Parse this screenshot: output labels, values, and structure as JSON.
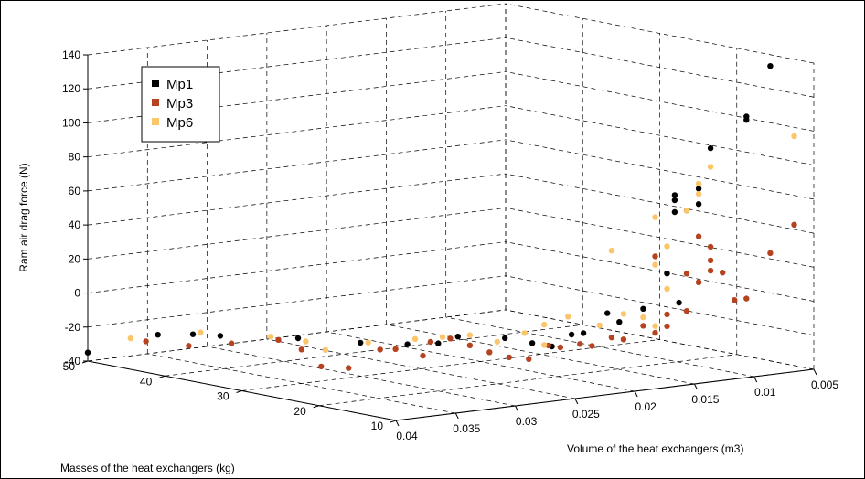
{
  "chart_data": {
    "type": "scatter",
    "projection": "3d",
    "title": "",
    "xlabel": "Volume of the heat exchangers (m3)",
    "ylabel": "Masses of the heat exchangers (kg)",
    "zlabel": "Ram air drag force (N)",
    "xlim": [
      0.005,
      0.04
    ],
    "ylim": [
      10,
      50
    ],
    "zlim": [
      -40,
      140
    ],
    "x_ticks": [
      "0.005",
      "0.01",
      "0.015",
      "0.02",
      "0.025",
      "0.03",
      "0.035",
      "0.04"
    ],
    "y_ticks": [
      "10",
      "20",
      "30",
      "40",
      "50"
    ],
    "z_ticks": [
      "-40",
      "-20",
      "0",
      "20",
      "40",
      "60",
      "80",
      "100",
      "120",
      "140"
    ],
    "grid": true,
    "legend_position": "top-left",
    "series": [
      {
        "name": "Mp1",
        "color": "#000000",
        "points": [
          {
            "x": 0.04,
            "y": 50,
            "z": -35
          },
          {
            "x": 0.038,
            "y": 44,
            "z": -21
          },
          {
            "x": 0.037,
            "y": 41,
            "z": -19
          },
          {
            "x": 0.036,
            "y": 39,
            "z": -19
          },
          {
            "x": 0.034,
            "y": 32,
            "z": -16
          },
          {
            "x": 0.032,
            "y": 27,
            "z": -16
          },
          {
            "x": 0.03,
            "y": 24,
            "z": -16
          },
          {
            "x": 0.03,
            "y": 20,
            "z": -12
          },
          {
            "x": 0.029,
            "y": 19,
            "z": -8
          },
          {
            "x": 0.027,
            "y": 16,
            "z": -8
          },
          {
            "x": 0.026,
            "y": 14,
            "z": -10
          },
          {
            "x": 0.025,
            "y": 13,
            "z": -12
          },
          {
            "x": 0.024,
            "y": 12,
            "z": -5
          },
          {
            "x": 0.023,
            "y": 12,
            "z": -5
          },
          {
            "x": 0.021,
            "y": 12,
            "z": 5
          },
          {
            "x": 0.02,
            "y": 12,
            "z": -1
          },
          {
            "x": 0.018,
            "y": 12,
            "z": 5
          },
          {
            "x": 0.016,
            "y": 12,
            "z": 24
          },
          {
            "x": 0.015,
            "y": 12,
            "z": 6
          },
          {
            "x": 0.016,
            "y": 11,
            "z": 68
          },
          {
            "x": 0.016,
            "y": 11,
            "z": 61
          },
          {
            "x": 0.016,
            "y": 11,
            "z": 71
          },
          {
            "x": 0.015,
            "y": 11,
            "z": 61
          },
          {
            "x": 0.014,
            "y": 11,
            "z": 64
          },
          {
            "x": 0.014,
            "y": 11,
            "z": 73
          },
          {
            "x": 0.013,
            "y": 11,
            "z": 96
          },
          {
            "x": 0.01,
            "y": 11,
            "z": 112
          },
          {
            "x": 0.01,
            "y": 11,
            "z": 110
          },
          {
            "x": 0.008,
            "y": 11,
            "z": 140
          }
        ]
      },
      {
        "name": "Mp3",
        "color": "#b5431f",
        "points": [
          {
            "x": 0.039,
            "y": 44,
            "z": -24
          },
          {
            "x": 0.038,
            "y": 40,
            "z": -24
          },
          {
            "x": 0.037,
            "y": 36,
            "z": -20
          },
          {
            "x": 0.035,
            "y": 33,
            "z": -17
          },
          {
            "x": 0.035,
            "y": 30,
            "z": -20
          },
          {
            "x": 0.034,
            "y": 29,
            "z": -30
          },
          {
            "x": 0.033,
            "y": 27,
            "z": -30
          },
          {
            "x": 0.031,
            "y": 26,
            "z": -20
          },
          {
            "x": 0.031,
            "y": 24,
            "z": -18
          },
          {
            "x": 0.03,
            "y": 22,
            "z": -21
          },
          {
            "x": 0.03,
            "y": 21,
            "z": -12
          },
          {
            "x": 0.029,
            "y": 20,
            "z": -10
          },
          {
            "x": 0.028,
            "y": 19,
            "z": -14
          },
          {
            "x": 0.027,
            "y": 18,
            "z": -18
          },
          {
            "x": 0.026,
            "y": 17,
            "z": -21
          },
          {
            "x": 0.025,
            "y": 16,
            "z": -22
          },
          {
            "x": 0.024,
            "y": 15,
            "z": -14
          },
          {
            "x": 0.023,
            "y": 15,
            "z": -16
          },
          {
            "x": 0.022,
            "y": 14,
            "z": -14
          },
          {
            "x": 0.021,
            "y": 14,
            "z": -16
          },
          {
            "x": 0.02,
            "y": 13,
            "z": -11
          },
          {
            "x": 0.019,
            "y": 13,
            "z": -13
          },
          {
            "x": 0.018,
            "y": 12,
            "z": -5
          },
          {
            "x": 0.017,
            "y": 12,
            "z": -10
          },
          {
            "x": 0.016,
            "y": 12,
            "z": -7
          },
          {
            "x": 0.016,
            "y": 12,
            "z": 0
          },
          {
            "x": 0.015,
            "y": 11,
            "z": 2
          },
          {
            "x": 0.017,
            "y": 12,
            "z": 35
          },
          {
            "x": 0.015,
            "y": 11,
            "z": 24
          },
          {
            "x": 0.014,
            "y": 11,
            "z": 18
          },
          {
            "x": 0.013,
            "y": 11,
            "z": 30
          },
          {
            "x": 0.013,
            "y": 11,
            "z": 24
          },
          {
            "x": 0.013,
            "y": 11,
            "z": 38
          },
          {
            "x": 0.014,
            "y": 11,
            "z": 45
          },
          {
            "x": 0.014,
            "y": 11,
            "z": 18
          },
          {
            "x": 0.012,
            "y": 11,
            "z": 22
          },
          {
            "x": 0.011,
            "y": 11,
            "z": 5
          },
          {
            "x": 0.01,
            "y": 11,
            "z": 5
          },
          {
            "x": 0.008,
            "y": 11,
            "z": 30
          },
          {
            "x": 0.006,
            "y": 11,
            "z": 45
          }
        ]
      },
      {
        "name": "Mp6",
        "color": "#fbc56a",
        "points": [
          {
            "x": 0.039,
            "y": 46,
            "z": -24
          },
          {
            "x": 0.037,
            "y": 40,
            "z": -17
          },
          {
            "x": 0.035,
            "y": 34,
            "z": -16
          },
          {
            "x": 0.034,
            "y": 31,
            "z": -17
          },
          {
            "x": 0.033,
            "y": 30,
            "z": -22
          },
          {
            "x": 0.032,
            "y": 26,
            "z": -15
          },
          {
            "x": 0.03,
            "y": 23,
            "z": -12
          },
          {
            "x": 0.029,
            "y": 21,
            "z": -10
          },
          {
            "x": 0.028,
            "y": 19,
            "z": -8
          },
          {
            "x": 0.027,
            "y": 17,
            "z": -11
          },
          {
            "x": 0.026,
            "y": 15,
            "z": -5
          },
          {
            "x": 0.025,
            "y": 14,
            "z": 0
          },
          {
            "x": 0.025,
            "y": 14,
            "z": -12
          },
          {
            "x": 0.023,
            "y": 14,
            "z": 3
          },
          {
            "x": 0.021,
            "y": 13,
            "z": -3
          },
          {
            "x": 0.019,
            "y": 13,
            "z": 2
          },
          {
            "x": 0.018,
            "y": 12,
            "z": 0
          },
          {
            "x": 0.017,
            "y": 12,
            "z": -6
          },
          {
            "x": 0.016,
            "y": 12,
            "z": 15
          },
          {
            "x": 0.017,
            "y": 12,
            "z": 30
          },
          {
            "x": 0.016,
            "y": 12,
            "z": 40
          },
          {
            "x": 0.02,
            "y": 13,
            "z": 40
          },
          {
            "x": 0.017,
            "y": 12,
            "z": 58
          },
          {
            "x": 0.015,
            "y": 11,
            "z": 61
          },
          {
            "x": 0.014,
            "y": 11,
            "z": 70
          },
          {
            "x": 0.014,
            "y": 11,
            "z": 76
          },
          {
            "x": 0.013,
            "y": 11,
            "z": 85
          },
          {
            "x": 0.006,
            "y": 11,
            "z": 97
          }
        ]
      }
    ]
  }
}
